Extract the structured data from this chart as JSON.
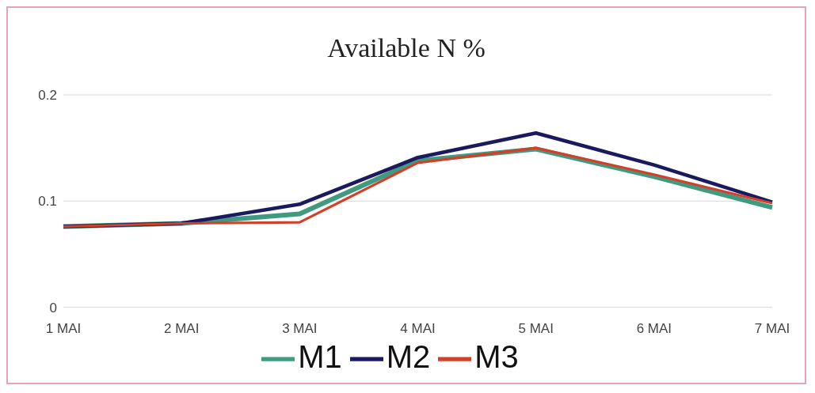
{
  "chart_data": {
    "type": "line",
    "title": "Available N %",
    "categories": [
      "1 MAI",
      "2 MAI",
      "3 MAI",
      "4 MAI",
      "5 MAI",
      "6 MAI",
      "7 MAI"
    ],
    "series": [
      {
        "name": "M1",
        "color": "#3f9a7f",
        "values": [
          0.076,
          0.079,
          0.088,
          0.138,
          0.149,
          0.123,
          0.094
        ]
      },
      {
        "name": "M2",
        "color": "#1b1a5e",
        "values": [
          0.076,
          0.079,
          0.097,
          0.141,
          0.164,
          0.134,
          0.099
        ]
      },
      {
        "name": "M3",
        "color": "#d2402a",
        "values": [
          0.076,
          0.079,
          0.08,
          0.136,
          0.15,
          0.125,
          0.098
        ]
      }
    ],
    "ylim": [
      0,
      0.2
    ],
    "yticks": [
      0,
      0.1,
      0.2
    ],
    "grid": "y",
    "legend": "bottom",
    "marker": "none",
    "line_style": "solid"
  }
}
